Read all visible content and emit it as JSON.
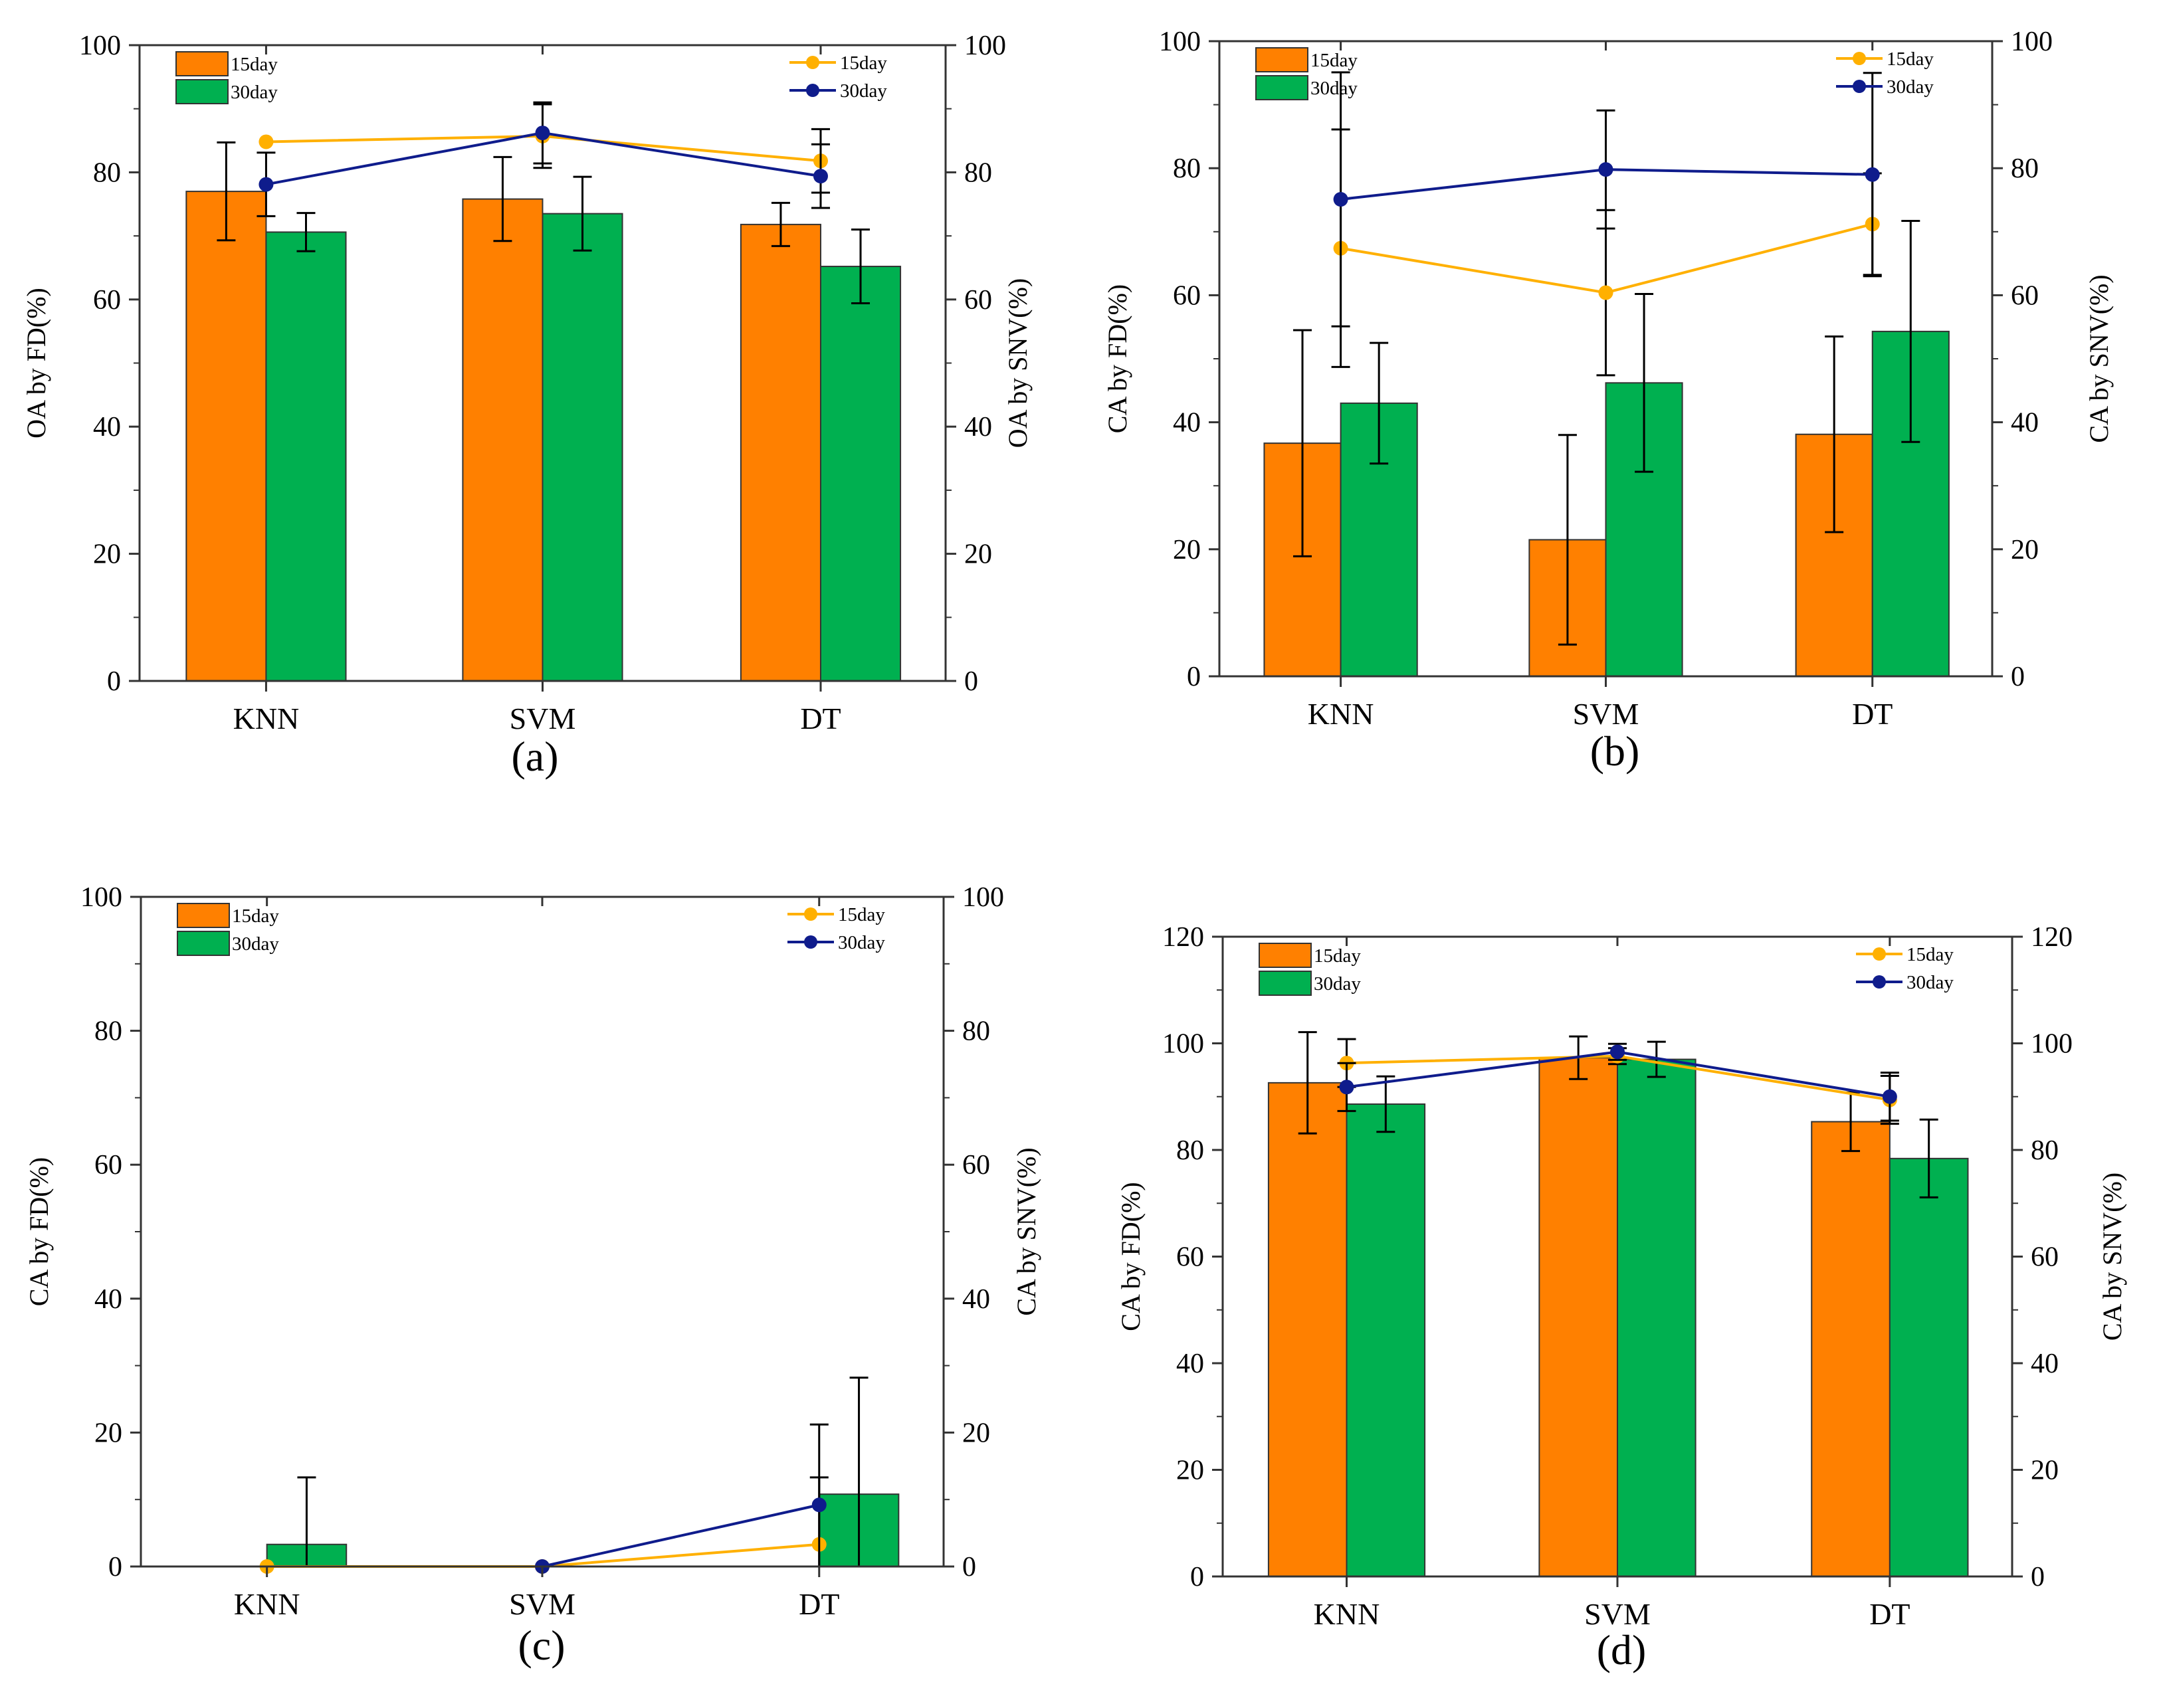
{
  "colors": {
    "bar_15day": "#FF8000",
    "bar_30day": "#00B050",
    "line_15day": "#FFB000",
    "line_30day": "#0F1C8C"
  },
  "chart_data": [
    {
      "type": "bar",
      "panel_label": "(a)",
      "categories": [
        "KNN",
        "SVM",
        "DT"
      ],
      "ylabel_left": "OA by FD(%)",
      "ylabel_right": "OA by SNV(%)",
      "ylim_left": [
        0,
        100
      ],
      "ylim_right": [
        0,
        100
      ],
      "yticks": [
        "0",
        "20",
        "40",
        "60",
        "80",
        "100"
      ],
      "bar_series": [
        {
          "name": "15day",
          "values": [
            77.0,
            75.8,
            71.8
          ],
          "errors": [
            7.7,
            6.6,
            3.4
          ]
        },
        {
          "name": "30day",
          "values": [
            70.6,
            73.5,
            65.2
          ],
          "errors": [
            3.0,
            5.8,
            5.8
          ]
        }
      ],
      "line_series": [
        {
          "name": "15day",
          "values": [
            84.8,
            85.7,
            81.8
          ],
          "errors": [
            0,
            5.0,
            5.0
          ]
        },
        {
          "name": "30day",
          "values": [
            78.1,
            86.2,
            79.4
          ],
          "errors": [
            5.0,
            4.8,
            5.0
          ]
        }
      ]
    },
    {
      "type": "bar",
      "panel_label": "(b)",
      "categories": [
        "KNN",
        "SVM",
        "DT"
      ],
      "ylabel_left": "CA by FD(%)",
      "ylabel_right": "CA by SNV(%)",
      "ylim_left": [
        0,
        100
      ],
      "ylim_right": [
        0,
        100
      ],
      "yticks": [
        "0",
        "20",
        "40",
        "60",
        "80",
        "100"
      ],
      "bar_series": [
        {
          "name": "15day",
          "values": [
            36.7,
            21.5,
            38.1
          ],
          "errors": [
            17.8,
            16.5,
            15.4
          ]
        },
        {
          "name": "30day",
          "values": [
            43.0,
            46.2,
            54.3
          ],
          "errors": [
            9.5,
            14.0,
            17.4
          ]
        }
      ],
      "line_series": [
        {
          "name": "15day",
          "values": [
            67.4,
            60.4,
            71.2
          ],
          "errors": [
            18.7,
            13.0,
            8.0
          ]
        },
        {
          "name": "30day",
          "values": [
            75.1,
            79.8,
            79.0
          ],
          "errors": [
            20.0,
            9.3,
            16.0
          ]
        }
      ]
    },
    {
      "type": "bar",
      "panel_label": "(c)",
      "categories": [
        "KNN",
        "SVM",
        "DT"
      ],
      "ylabel_left": "CA by FD(%)",
      "ylabel_right": "CA by SNV(%)",
      "ylim_left": [
        0,
        100
      ],
      "ylim_right": [
        0,
        100
      ],
      "yticks": [
        "0",
        "20",
        "40",
        "60",
        "80",
        "100"
      ],
      "bar_series": [
        {
          "name": "15day",
          "values": [
            0,
            0,
            0
          ],
          "errors": [
            0,
            0,
            0
          ]
        },
        {
          "name": "30day",
          "values": [
            3.3,
            0,
            10.8
          ],
          "errors": [
            10.0,
            0,
            17.4
          ]
        }
      ],
      "line_series": [
        {
          "name": "15day",
          "values": [
            0,
            0,
            3.3
          ],
          "errors": [
            0,
            0,
            10.0
          ]
        },
        {
          "name": "30day",
          "values": [
            0,
            0,
            9.2
          ],
          "errors": [
            0,
            0,
            12.0
          ]
        }
      ]
    },
    {
      "type": "bar",
      "panel_label": "(d)",
      "categories": [
        "KNN",
        "SVM",
        "DT"
      ],
      "ylabel_left": "CA by FD(%)",
      "ylabel_right": "CA by SNV(%)",
      "ylim_left": [
        0,
        120
      ],
      "ylim_right": [
        0,
        120
      ],
      "yticks": [
        "0",
        "20",
        "40",
        "60",
        "80",
        "100",
        "120"
      ],
      "bar_series": [
        {
          "name": "15day",
          "values": [
            92.6,
            97.3,
            85.3
          ],
          "errors": [
            9.5,
            4.0,
            5.5
          ]
        },
        {
          "name": "30day",
          "values": [
            88.6,
            97.0,
            78.4
          ],
          "errors": [
            5.2,
            3.3,
            7.3
          ]
        }
      ],
      "line_series": [
        {
          "name": "15day",
          "values": [
            96.3,
            97.6,
            89.4
          ],
          "errors": [
            4.5,
            1.5,
            4.5
          ]
        },
        {
          "name": "30day",
          "values": [
            91.8,
            98.4,
            90.0
          ],
          "errors": [
            4.5,
            1.5,
            4.5
          ]
        }
      ]
    }
  ]
}
